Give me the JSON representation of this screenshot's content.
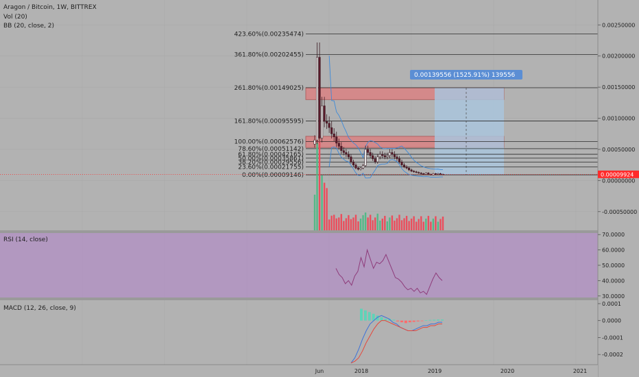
{
  "header": {
    "title": "Aragon / Bitcoin, 1W, BITTREX",
    "volume_label": "Vol (20)",
    "bb_label": "BB (20, close, 2)"
  },
  "colors": {
    "background": "#b2b2b2",
    "up": "#53b987",
    "down": "#eb4d5c",
    "rsi_fill": "#b18fc4",
    "rsi_line": "#8e3b7a",
    "bb_line": "#3d8ad9",
    "macd_line": "#3d72d9",
    "signal_line": "#e6463a",
    "price_badge": "#ff2a2a",
    "fib_zone": "#d4898a",
    "target_zone": "#a9c4dc",
    "target_badge": "#5b8ed4"
  },
  "price_badge": "0.00009924",
  "measure_label": "0.00139556 (1525.91%) 139556",
  "chart_data": [
    {
      "type": "candlestick",
      "title": "Aragon / Bitcoin, 1W, BITTREX",
      "ylim": [
        -0.0008,
        0.0029
      ],
      "yticks": [
        "0.00250000",
        "0.00200000",
        "0.00150000",
        "0.00100000",
        "0.00050000",
        "0.00000000",
        "-0.00050000"
      ],
      "ytick_values": [
        0.0025,
        0.002,
        0.0015,
        0.001,
        0.0005,
        0,
        -0.0005
      ],
      "x_labels": [
        "Jun",
        "2018",
        "2019",
        "2020",
        "2021"
      ],
      "last_price": 9.924e-05,
      "fib_levels": [
        {
          "label": "423.60%(0.00235474)",
          "value": 0.00235474
        },
        {
          "label": "361.80%(0.00202455)",
          "value": 0.00202455
        },
        {
          "label": "261.80%(0.00149025)",
          "value": 0.00149025
        },
        {
          "label": "161.80%(0.00095595)",
          "value": 0.00095595
        },
        {
          "label": "100.00%(0.00062576)",
          "value": 0.00062576
        },
        {
          "label": "78.60%(0.00051142)",
          "value": 0.00051142
        },
        {
          "label": "61.80%(0.00042165)",
          "value": 0.00042165
        },
        {
          "label": "50.00%(0.00035861)",
          "value": 0.00035861
        },
        {
          "label": "38.20%(0.00029556)",
          "value": 0.00029556
        },
        {
          "label": "23.60%(0.00021755)",
          "value": 0.00021755
        },
        {
          "label": "0.00%(0.00009146)",
          "value": 9.146e-05
        }
      ],
      "closes": [
        0.00065,
        0.00198,
        0.00068,
        0.0012,
        0.00095,
        0.00092,
        0.00085,
        0.00075,
        0.0007,
        0.0006,
        0.00055,
        0.00048,
        0.00045,
        0.00042,
        0.00038,
        0.0003,
        0.00025,
        0.0002,
        0.00018,
        0.0002,
        0.00024,
        0.0005,
        0.00045,
        0.0004,
        0.00035,
        0.0003,
        0.00038,
        0.00042,
        0.0004,
        0.00038,
        0.0004,
        0.00045,
        0.00042,
        0.00038,
        0.00035,
        0.0003,
        0.00025,
        0.00022,
        0.0002,
        0.00017,
        0.00015,
        0.00014,
        0.00013,
        0.00012,
        0.00011,
        0.0001,
        0.00012,
        0.0001,
        9e-05,
        0.00011,
        0.0001,
        0.00011,
        0.0001,
        9.924e-05
      ]
    },
    {
      "type": "line",
      "title": "RSI (14, close)",
      "ylim": [
        29,
        71
      ],
      "yticks": [
        "70.0000",
        "60.0000",
        "50.0000",
        "40.0000",
        "30.0000"
      ],
      "ytick_values": [
        70,
        60,
        50,
        40,
        30
      ],
      "values": [
        48,
        44,
        42,
        38,
        40,
        37,
        43,
        46,
        55,
        49,
        60,
        54,
        48,
        52,
        51,
        53,
        57,
        52,
        47,
        42,
        41,
        39,
        36,
        34,
        35,
        33,
        35,
        32,
        33,
        31,
        36,
        41,
        45,
        42,
        40
      ]
    },
    {
      "type": "line",
      "title": "MACD (12, 26, close, 9)",
      "ylim": [
        -0.00026,
        0.00012
      ],
      "yticks": [
        "0.0001",
        "0.0000",
        "-0.0001",
        "-0.0002"
      ],
      "ytick_values": [
        0.0001,
        0.0,
        -0.0001,
        -0.0002
      ],
      "series": [
        {
          "values": [
            -0.00025,
            -0.00022,
            -0.00017,
            -0.00011,
            -6e-05,
            -2e-05,
            -0.0,
            2e-05,
            3e-05,
            2e-05,
            1e-05,
            -1e-05,
            -2e-05,
            -4e-05,
            -5e-05,
            -6e-05,
            -6e-05,
            -5e-05,
            -4e-05,
            -3e-05,
            -3e-05,
            -2e-05,
            -2e-05,
            -1e-05,
            -1e-05
          ]
        },
        {
          "values": [
            -0.00025,
            -0.00024,
            -0.00022,
            -0.00018,
            -0.00013,
            -9e-05,
            -5e-05,
            -2e-05,
            -0.0,
            0.0,
            -1e-05,
            -2e-05,
            -3e-05,
            -4e-05,
            -5e-05,
            -6e-05,
            -6e-05,
            -6e-05,
            -5e-05,
            -4e-05,
            -4e-05,
            -3e-05,
            -3e-05,
            -2e-05,
            -2e-05
          ]
        }
      ],
      "histogram": [
        7e-05,
        6e-05,
        5e-05,
        4e-05,
        3e-05,
        2e-05,
        1e-05,
        1e-05,
        5e-06,
        -5e-06,
        -1e-05,
        -1.5e-05,
        -1e-05,
        -8e-06,
        -5e-06,
        -3e-06,
        2e-06,
        4e-06,
        5e-06,
        6e-06,
        6e-06
      ]
    }
  ]
}
